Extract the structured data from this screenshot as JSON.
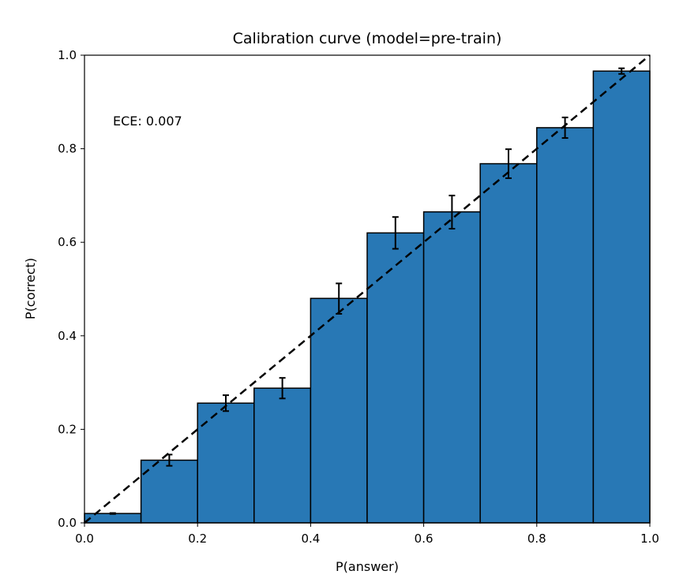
{
  "chart_data": {
    "type": "bar",
    "title": "Calibration curve (model=pre-train)",
    "xlabel": "P(answer)",
    "ylabel": "P(correct)",
    "xlim": [
      0.0,
      1.0
    ],
    "ylim": [
      0.0,
      1.0
    ],
    "xticks": [
      "0.0",
      "0.2",
      "0.4",
      "0.6",
      "0.8",
      "1.0"
    ],
    "yticks": [
      "0.0",
      "0.2",
      "0.4",
      "0.6",
      "0.8",
      "1.0"
    ],
    "bin_edges": [
      0.0,
      0.1,
      0.2,
      0.3,
      0.4,
      0.5,
      0.6,
      0.7,
      0.8,
      0.9,
      1.0
    ],
    "values": [
      0.02,
      0.134,
      0.256,
      0.288,
      0.48,
      0.62,
      0.665,
      0.768,
      0.845,
      0.966
    ],
    "error_low": [
      0.019,
      0.122,
      0.239,
      0.266,
      0.447,
      0.586,
      0.629,
      0.737,
      0.823,
      0.96
    ],
    "error_high": [
      0.021,
      0.146,
      0.273,
      0.31,
      0.512,
      0.654,
      0.7,
      0.799,
      0.867,
      0.972
    ],
    "annotation": "ECE: 0.007",
    "reference_line": {
      "from": [
        0.0,
        0.0
      ],
      "to": [
        1.0,
        1.0
      ],
      "style": "dashed",
      "color": "#000000"
    },
    "bar_color": "#2878b5",
    "edge_color": "#000000",
    "grid": false
  }
}
